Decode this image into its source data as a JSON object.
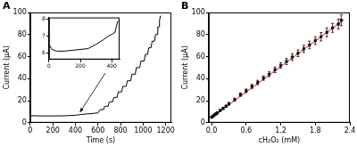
{
  "chart_data": [
    {
      "type": "line",
      "title": "A",
      "x_label": "Time (s)",
      "y_label": "Current (μA)",
      "xlim": [
        0,
        1250
      ],
      "ylim": [
        0,
        100
      ],
      "xticks": [
        0,
        200,
        400,
        600,
        800,
        1000,
        1200
      ],
      "yticks": [
        0,
        20,
        40,
        60,
        80,
        100
      ],
      "grid": false,
      "color": "#000000",
      "line_style": "solid",
      "x": [
        0,
        100,
        200,
        300,
        400,
        450,
        500,
        560,
        600,
        620,
        650,
        660,
        690,
        700,
        730,
        740,
        770,
        780,
        810,
        820,
        850,
        860,
        890,
        900,
        930,
        940,
        970,
        980,
        1010,
        1020,
        1040,
        1050,
        1070,
        1080,
        1100,
        1110,
        1125,
        1130,
        1140,
        1145,
        1155
      ],
      "values": [
        6.4,
        6.2,
        6.2,
        6.3,
        6.8,
        7.5,
        8,
        8.5,
        9,
        12,
        12,
        15,
        15,
        19,
        19,
        23,
        23,
        28,
        28,
        33,
        33,
        38,
        38,
        44,
        44,
        50,
        50,
        56,
        56,
        62,
        62,
        68,
        68,
        74,
        74,
        80,
        80,
        87,
        87,
        93,
        97
      ]
    },
    {
      "type": "line",
      "xlim": [
        0,
        450
      ],
      "ylim": [
        5.6,
        8.1
      ],
      "xticks": [
        0,
        200,
        400
      ],
      "yticks": [
        6,
        7,
        8
      ],
      "grid": false,
      "color": "#000000",
      "line_style": "solid",
      "x": [
        0,
        20,
        50,
        100,
        150,
        200,
        250,
        300,
        350,
        380,
        400,
        420,
        430,
        440
      ],
      "values": [
        6.5,
        6.2,
        6.1,
        6.1,
        6.15,
        6.2,
        6.25,
        6.5,
        6.8,
        7.0,
        7.1,
        7.2,
        7.6,
        7.9
      ]
    },
    {
      "type": "scatter",
      "title": "B",
      "x_label": "cH₂O₂ (mM)",
      "y_label": "Current (μA)",
      "xlim": [
        -0.05,
        2.4
      ],
      "ylim": [
        0,
        100
      ],
      "xticks": [
        {
          "value": 0,
          "label": "0.0"
        },
        0.6,
        1.2,
        1.8,
        2.4
      ],
      "yticks": [
        0,
        20,
        40,
        60,
        80,
        100
      ],
      "grid": false,
      "series": [
        {
          "type": "scatter",
          "color": "#000000",
          "marker": "square",
          "x": [
            0,
            0.02,
            0.04,
            0.06,
            0.08,
            0.1,
            0.15,
            0.2,
            0.25,
            0.3,
            0.4,
            0.5,
            0.6,
            0.7,
            0.8,
            0.9,
            1.0,
            1.1,
            1.2,
            1.3,
            1.4,
            1.5,
            1.6,
            1.7,
            1.8,
            1.9,
            2.0,
            2.1,
            2.2,
            2.25
          ],
          "values": [
            5.0,
            5.8,
            6.6,
            7.5,
            8.3,
            9.0,
            11.2,
            13.0,
            15.0,
            17.2,
            21.0,
            25.5,
            29.0,
            33.0,
            36.5,
            40.5,
            44.0,
            48.0,
            52.0,
            55.5,
            59.5,
            63.0,
            67.0,
            70.5,
            74.5,
            78.0,
            82.0,
            86.0,
            89.5,
            93.0
          ],
          "errors": [
            0.5,
            0.6,
            0.6,
            0.7,
            0.7,
            0.8,
            0.9,
            1.0,
            1.0,
            1.2,
            1.3,
            1.5,
            1.6,
            1.8,
            2.0,
            2.0,
            2.2,
            2.5,
            2.5,
            2.8,
            3.0,
            3.0,
            3.2,
            3.5,
            3.5,
            3.8,
            4.0,
            4.0,
            4.5,
            5.0
          ]
        },
        {
          "type": "line",
          "color": "#ff0000",
          "line_style": "solid",
          "x": [
            0,
            2.3
          ],
          "values": [
            4.8,
            93.5
          ]
        }
      ]
    }
  ]
}
